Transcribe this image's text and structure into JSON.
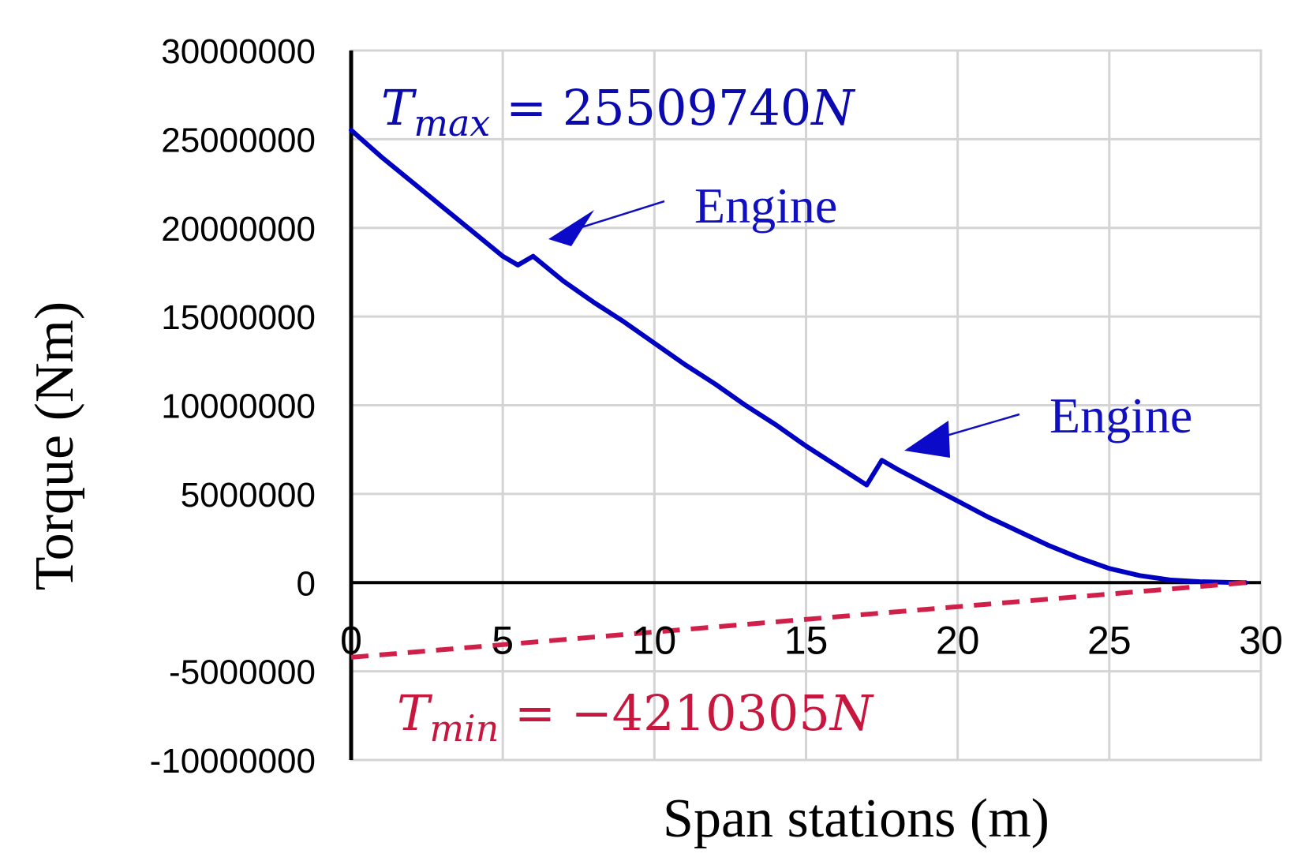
{
  "chart_data": {
    "type": "line",
    "xlabel": "Span stations (m)",
    "ylabel": "Torque (Nm)",
    "xlim": [
      0,
      30
    ],
    "ylim": [
      -10000000,
      30000000
    ],
    "x_ticks": [
      "0",
      "5",
      "10",
      "15",
      "20",
      "25",
      "30"
    ],
    "y_ticks": [
      "30000000",
      "25000000",
      "20000000",
      "15000000",
      "10000000",
      "5000000",
      "0",
      "-5000000",
      "-10000000"
    ],
    "grid": true,
    "series": [
      {
        "color": "#0000c0",
        "style": "solid",
        "x": [
          0,
          1,
          2,
          3,
          4,
          5,
          5.5,
          6,
          7,
          8,
          9,
          10,
          11,
          12,
          13,
          14,
          15,
          16,
          17,
          17.5,
          18,
          19,
          20,
          21,
          22,
          23,
          24,
          25,
          26,
          27,
          28,
          29,
          29.5
        ],
        "y": [
          25509740,
          24000000,
          22600000,
          21200000,
          19800000,
          18400000,
          17900000,
          18400000,
          17000000,
          15800000,
          14700000,
          13500000,
          12300000,
          11200000,
          10000000,
          8900000,
          7700000,
          6600000,
          5500000,
          6900000,
          6400000,
          5500000,
          4600000,
          3700000,
          2900000,
          2100000,
          1400000,
          800000,
          400000,
          150000,
          50000,
          10000,
          0
        ]
      },
      {
        "color": "#d0204a",
        "style": "dashed",
        "x": [
          0,
          29.5
        ],
        "y": [
          -4210305,
          0
        ]
      }
    ],
    "annotations": [
      {
        "text": "Engine",
        "color": "#1010c0"
      },
      {
        "text": "Engine",
        "color": "#1010c0"
      }
    ],
    "tmax": {
      "symbol": "T",
      "sub": "max",
      "eq": " = 25509740",
      "unit": "N",
      "color": "#0a0ab0"
    },
    "tmin": {
      "symbol": "T",
      "sub": "min",
      "eq": " = −4210305",
      "unit": "N",
      "color": "#c8173e"
    }
  }
}
